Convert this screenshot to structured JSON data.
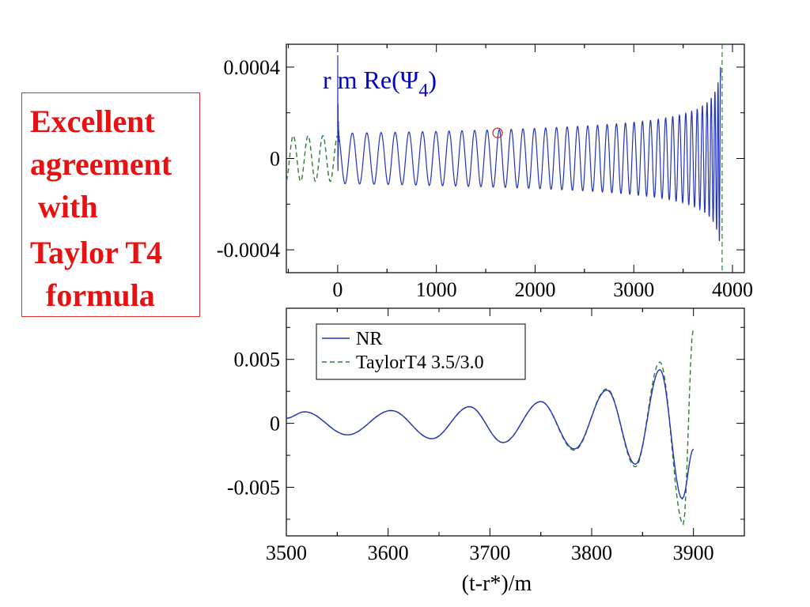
{
  "callout": {
    "lines": [
      "Excellent",
      "agreement",
      " with",
      "Taylor T4",
      "  formula"
    ],
    "color": "#e81010"
  },
  "chart_data": [
    {
      "type": "line",
      "annotation": "r m Re(Ψ",
      "annotation_subscript": "4",
      "annotation_suffix": ")",
      "annotation_color": "#0000cc",
      "xlim": [
        -520,
        4120
      ],
      "ylim": [
        -0.0005,
        0.0005
      ],
      "x_ticks": [
        0,
        1000,
        2000,
        3000,
        4000
      ],
      "x_tick_labels": [
        "0",
        "1000",
        "2000",
        "3000",
        "4000"
      ],
      "y_ticks": [
        -0.0004,
        0,
        0.0004
      ],
      "y_tick_labels": [
        "-0.0004",
        "0",
        "0.0004"
      ],
      "series": [
        {
          "style": "solid",
          "color": "#2233bb",
          "x_range": [
            0,
            3880
          ],
          "chirp": {
            "amp_start": 0.00011,
            "amp_growth": 0.0006,
            "period_start": 150,
            "t_merger": 3900
          }
        },
        {
          "style": "dashed",
          "color": "#2e7d32",
          "x_range": [
            -520,
            0
          ],
          "chirp": {
            "amp_start": 0.0001,
            "period_start": 150
          }
        }
      ],
      "marker": {
        "x": 1620,
        "y": 0.000112,
        "color": "#cc2222",
        "shape": "circle"
      }
    },
    {
      "type": "line",
      "xlim": [
        3500,
        3950
      ],
      "ylim": [
        -0.0088,
        0.009
      ],
      "x_ticks": [
        3500,
        3600,
        3700,
        3800,
        3900
      ],
      "x_tick_labels": [
        "3500",
        "3600",
        "3700",
        "3800",
        "3900"
      ],
      "y_ticks": [
        -0.005,
        0,
        0.005
      ],
      "y_tick_labels": [
        "-0.005",
        "0",
        "0.005"
      ],
      "xlabel": "(t-r*)/m",
      "legend_placement": "top-left",
      "series": [
        {
          "name": "NR",
          "style": "solid",
          "color": "#2233bb",
          "extrema_x": [
            3500,
            3518,
            3560,
            3603,
            3643,
            3680,
            3713,
            3750,
            3783,
            3815,
            3843,
            3867,
            3889,
            3900
          ],
          "extrema_y": [
            0.0004,
            0.0009,
            -0.0009,
            0.001,
            -0.0012,
            0.0013,
            -0.0015,
            0.0017,
            -0.002,
            0.0026,
            -0.0032,
            0.0042,
            -0.0059,
            -0.002
          ]
        },
        {
          "name": "TaylorT4 3.5/3.0",
          "style": "dashed",
          "color": "#2e7d32",
          "extrema_x": [
            3500,
            3518,
            3560,
            3603,
            3643,
            3680,
            3713,
            3750,
            3783,
            3815,
            3843,
            3867,
            3890,
            3900
          ],
          "extrema_y": [
            0.0004,
            0.0009,
            -0.0009,
            0.001,
            -0.0012,
            0.0013,
            -0.0015,
            0.0017,
            -0.0021,
            0.0027,
            -0.0034,
            0.0048,
            -0.0079,
            0.0075
          ]
        }
      ]
    }
  ]
}
